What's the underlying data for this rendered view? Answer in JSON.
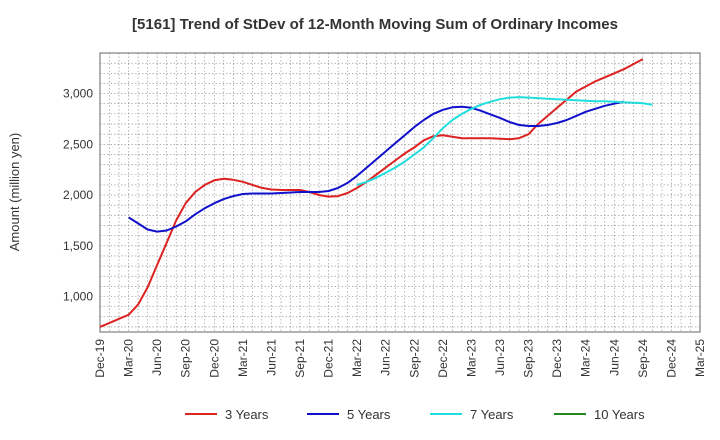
{
  "chart_data": {
    "type": "line",
    "title": "[5161]  Trend of StDev of 12-Month Moving Sum of Ordinary Incomes",
    "xlabel": "",
    "ylabel": "Amount (million yen)",
    "ylim": [
      650,
      3400
    ],
    "yticks": [
      1000,
      1500,
      2000,
      2500,
      3000
    ],
    "ytick_labels": [
      "1,000",
      "1,500",
      "2,000",
      "2,500",
      "3,000"
    ],
    "x_start": "Dec-19",
    "x_end": "Mar-25",
    "xtick_labels": [
      "Dec-19",
      "Mar-20",
      "Jun-20",
      "Sep-20",
      "Dec-20",
      "Mar-21",
      "Jun-21",
      "Sep-21",
      "Dec-21",
      "Mar-22",
      "Jun-22",
      "Sep-22",
      "Dec-22",
      "Mar-23",
      "Jun-23",
      "Sep-23",
      "Dec-23",
      "Mar-24",
      "Jun-24",
      "Sep-24",
      "Dec-24",
      "Mar-25"
    ],
    "grid": true,
    "legend_position": "bottom",
    "series": [
      {
        "name": "3 Years",
        "color": "#dd2222",
        "start_month": 0,
        "values": [
          700,
          740,
          780,
          820,
          920,
          1090,
          1310,
          1530,
          1750,
          1920,
          2030,
          2100,
          2145,
          2160,
          2150,
          2130,
          2100,
          2070,
          2055,
          2050,
          2050,
          2050,
          2030,
          2000,
          1985,
          1990,
          2020,
          2070,
          2130,
          2200,
          2270,
          2340,
          2410,
          2470,
          2540,
          2580,
          2590,
          2575,
          2560,
          2560,
          2560,
          2560,
          2555,
          2550,
          2560,
          2600,
          2700,
          2780,
          2860,
          2940,
          3020,
          3070,
          3120,
          3160,
          3200,
          3240,
          3290,
          3340
        ]
      },
      {
        "name": "5 Years",
        "color": "#1111cc",
        "start_month": 3,
        "values": [
          1780,
          1720,
          1660,
          1640,
          1650,
          1690,
          1740,
          1810,
          1870,
          1920,
          1960,
          1990,
          2010,
          2015,
          2015,
          2015,
          2020,
          2025,
          2030,
          2030,
          2030,
          2040,
          2070,
          2120,
          2190,
          2270,
          2350,
          2430,
          2510,
          2590,
          2670,
          2740,
          2800,
          2840,
          2865,
          2870,
          2860,
          2830,
          2795,
          2760,
          2720,
          2690,
          2680,
          2680,
          2690,
          2710,
          2740,
          2780,
          2820,
          2850,
          2880,
          2900,
          2920
        ]
      },
      {
        "name": "7 Years",
        "color": "#22dddd",
        "start_month": 27,
        "values": [
          2100,
          2130,
          2170,
          2220,
          2270,
          2330,
          2400,
          2470,
          2560,
          2660,
          2740,
          2800,
          2850,
          2890,
          2920,
          2945,
          2960,
          2965,
          2960,
          2955,
          2950,
          2945,
          2940,
          2935,
          2930,
          2925,
          2925,
          2920,
          2915,
          2910,
          2905,
          2890
        ]
      },
      {
        "name": "10 Years",
        "color": "#228822",
        "start_month": 0,
        "values": []
      }
    ]
  }
}
